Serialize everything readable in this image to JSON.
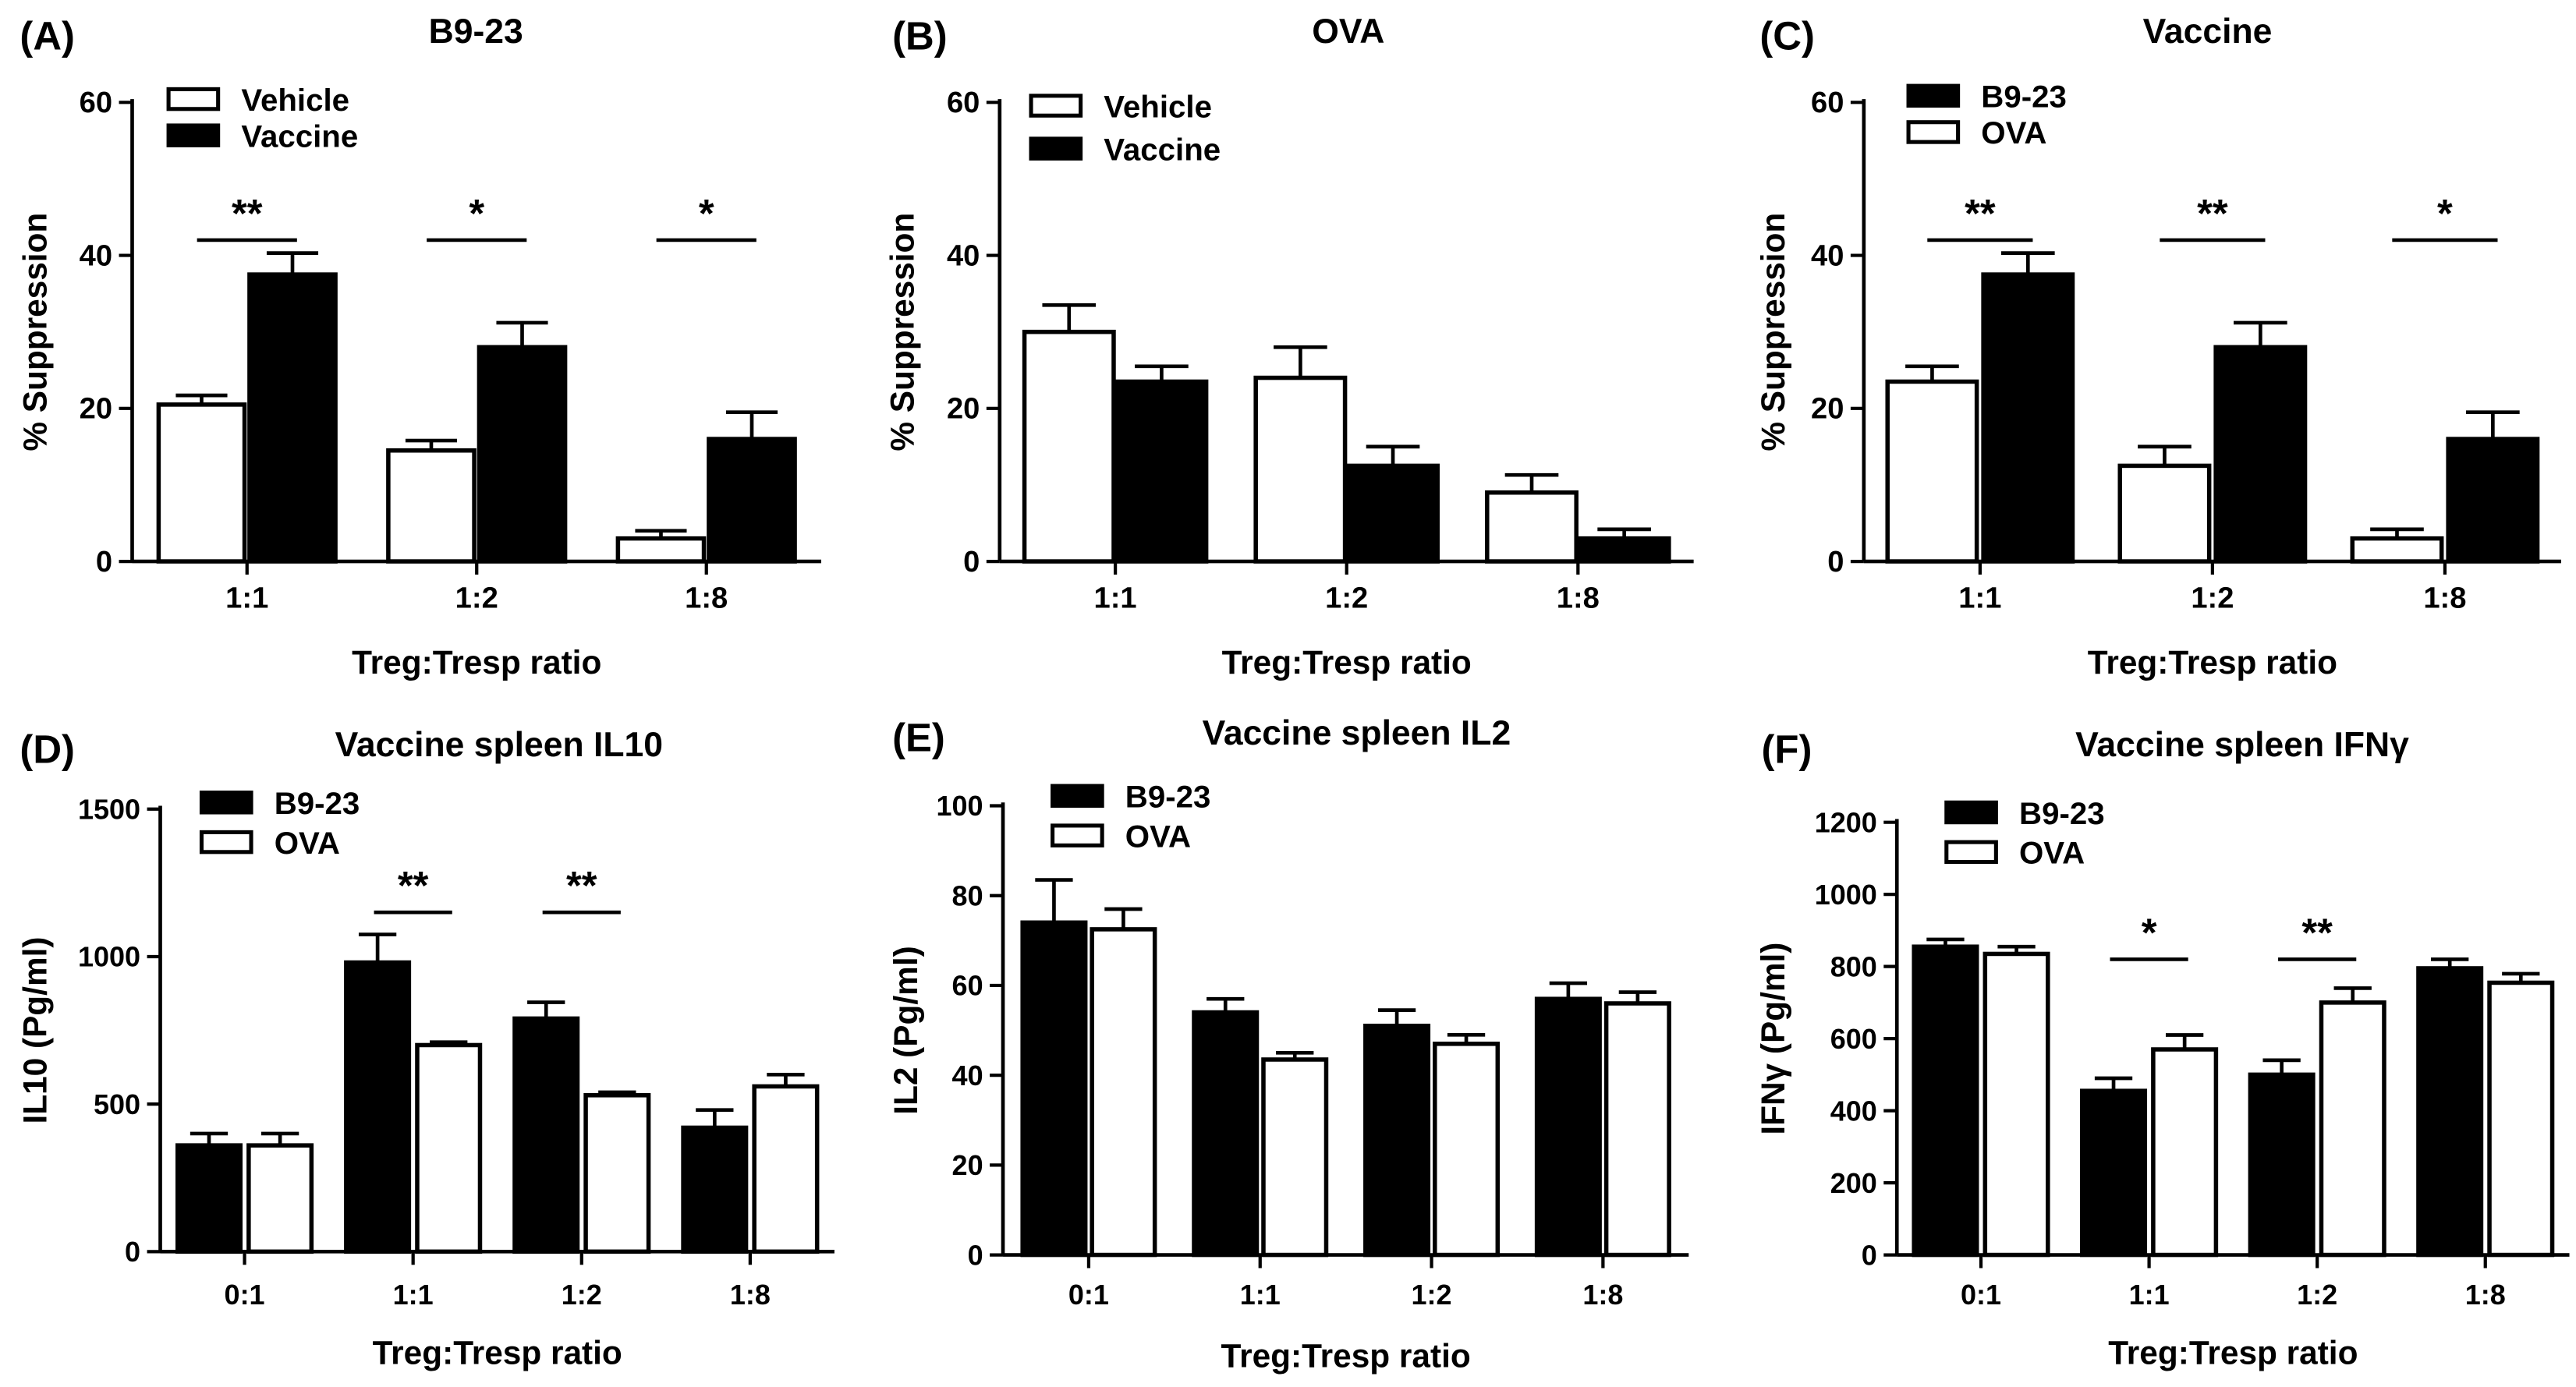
{
  "figure": "six-panel bar chart figure",
  "colors": {
    "filled": "#000000",
    "open": "#ffffff",
    "stroke": "#000000"
  },
  "chart_data": [
    {
      "type": "bar",
      "panel": "(A)",
      "title": "B9-23",
      "xlabel": "Treg:Tresp ratio",
      "ylabel": "% Suppression",
      "ylim": [
        0,
        60
      ],
      "yticks": [
        "0",
        "20",
        "40",
        "60"
      ],
      "categories": [
        "1:1",
        "1:2",
        "1:8"
      ],
      "series": [
        {
          "name": "Vehicle",
          "fill": "open",
          "values": [
            20.5,
            14.5,
            3.0
          ],
          "errors": [
            1.2,
            1.3,
            1.0
          ]
        },
        {
          "name": "Vaccine",
          "fill": "filled",
          "values": [
            37.5,
            28.0,
            16.0
          ],
          "errors": [
            2.8,
            3.2,
            3.5
          ]
        }
      ],
      "significance": [
        {
          "category": 0,
          "label": "**",
          "y": 42
        },
        {
          "category": 1,
          "label": "*",
          "y": 42
        },
        {
          "category": 2,
          "label": "*",
          "y": 42
        }
      ],
      "legend": {
        "position": "top-left",
        "row_gap": 22
      }
    },
    {
      "type": "bar",
      "panel": "(B)",
      "title": "OVA",
      "xlabel": "Treg:Tresp ratio",
      "ylabel": "% Suppression",
      "ylim": [
        0,
        60
      ],
      "yticks": [
        "0",
        "20",
        "40",
        "60"
      ],
      "categories": [
        "1:1",
        "1:2",
        "1:8"
      ],
      "series": [
        {
          "name": "Vehicle",
          "fill": "open",
          "values": [
            30.0,
            24.0,
            9.0
          ],
          "errors": [
            3.5,
            4.0,
            2.3
          ]
        },
        {
          "name": "Vaccine",
          "fill": "filled",
          "values": [
            23.5,
            12.5,
            3.0
          ],
          "errors": [
            2.0,
            2.5,
            1.2
          ]
        }
      ],
      "significance": [],
      "legend": {
        "position": "top-left",
        "row_gap": 26
      }
    },
    {
      "type": "bar",
      "panel": "(C)",
      "title": "Vaccine",
      "xlabel": "Treg:Tresp ratio",
      "ylabel": "% Suppression",
      "ylim": [
        0,
        60
      ],
      "yticks": [
        "0",
        "20",
        "40",
        "60"
      ],
      "categories": [
        "1:1",
        "1:2",
        "1:8"
      ],
      "series": [
        {
          "name": "OVA",
          "fill": "open",
          "values": [
            23.5,
            12.5,
            3.0
          ],
          "errors": [
            2.0,
            2.5,
            1.2
          ]
        },
        {
          "name": "B9-23",
          "fill": "filled",
          "values": [
            37.5,
            28.0,
            16.0
          ],
          "errors": [
            2.8,
            3.2,
            3.5
          ]
        }
      ],
      "significance": [
        {
          "category": 0,
          "label": "**",
          "y": 42
        },
        {
          "category": 1,
          "label": "**",
          "y": 42
        },
        {
          "category": 2,
          "label": "*",
          "y": 42
        }
      ],
      "legend": {
        "position": "top-left",
        "row_gap": 22,
        "order": [
          1,
          0
        ]
      }
    },
    {
      "type": "bar",
      "panel": "(D)",
      "title": "Vaccine spleen IL10",
      "xlabel": "Treg:Tresp ratio",
      "ylabel": "IL10 (Pg/ml)",
      "ylim": [
        0,
        1500
      ],
      "yticks": [
        "0",
        "500",
        "1000",
        "1500"
      ],
      "categories": [
        "0:1",
        "1:1",
        "1:2",
        "1:8"
      ],
      "series": [
        {
          "name": "B9-23",
          "fill": "filled",
          "values": [
            360,
            980,
            790,
            420
          ],
          "errors": [
            40,
            95,
            55,
            60
          ]
        },
        {
          "name": "OVA",
          "fill": "open",
          "values": [
            360,
            700,
            530,
            560
          ],
          "errors": [
            40,
            10,
            10,
            40
          ]
        }
      ],
      "significance": [
        {
          "category": 1,
          "label": "**",
          "y": 1150
        },
        {
          "category": 2,
          "label": "**",
          "y": 1150
        }
      ],
      "legend": {
        "position": "top-left",
        "row_gap": 24
      }
    },
    {
      "type": "bar",
      "panel": "(E)",
      "title": "Vaccine spleen IL2",
      "xlabel": "Treg:Tresp ratio",
      "ylabel": "IL2 (Pg/ml)",
      "ylim": [
        0,
        100
      ],
      "yticks": [
        "0",
        "20",
        "40",
        "60",
        "80",
        "100"
      ],
      "categories": [
        "0:1",
        "1:1",
        "1:2",
        "1:8"
      ],
      "series": [
        {
          "name": "B9-23",
          "fill": "filled",
          "values": [
            74,
            54,
            51,
            57
          ],
          "errors": [
            9.5,
            3.0,
            3.5,
            3.5
          ]
        },
        {
          "name": "OVA",
          "fill": "open",
          "values": [
            72.5,
            43.5,
            47,
            56
          ],
          "errors": [
            4.5,
            1.5,
            2.0,
            2.5
          ]
        }
      ],
      "significance": [],
      "legend": {
        "position": "top-left",
        "row_gap": 24
      }
    },
    {
      "type": "bar",
      "panel": "(F)",
      "title": "Vaccine spleen IFNγ",
      "xlabel": "Treg:Tresp ratio",
      "ylabel": "IFNγ (Pg/ml)",
      "ylim": [
        0,
        1200
      ],
      "yticks": [
        "0",
        "200",
        "400",
        "600",
        "800",
        "1000",
        "1200"
      ],
      "categories": [
        "0:1",
        "1:1",
        "1:2",
        "1:8"
      ],
      "series": [
        {
          "name": "B9-23",
          "fill": "filled",
          "values": [
            855,
            455,
            500,
            795
          ],
          "errors": [
            20,
            35,
            40,
            25
          ]
        },
        {
          "name": "OVA",
          "fill": "open",
          "values": [
            835,
            570,
            700,
            755
          ],
          "errors": [
            20,
            40,
            40,
            25
          ]
        }
      ],
      "significance": [
        {
          "category": 1,
          "label": "*",
          "y": 820
        },
        {
          "category": 2,
          "label": "**",
          "y": 820
        }
      ],
      "legend": {
        "position": "top-left",
        "row_gap": 24
      }
    }
  ]
}
